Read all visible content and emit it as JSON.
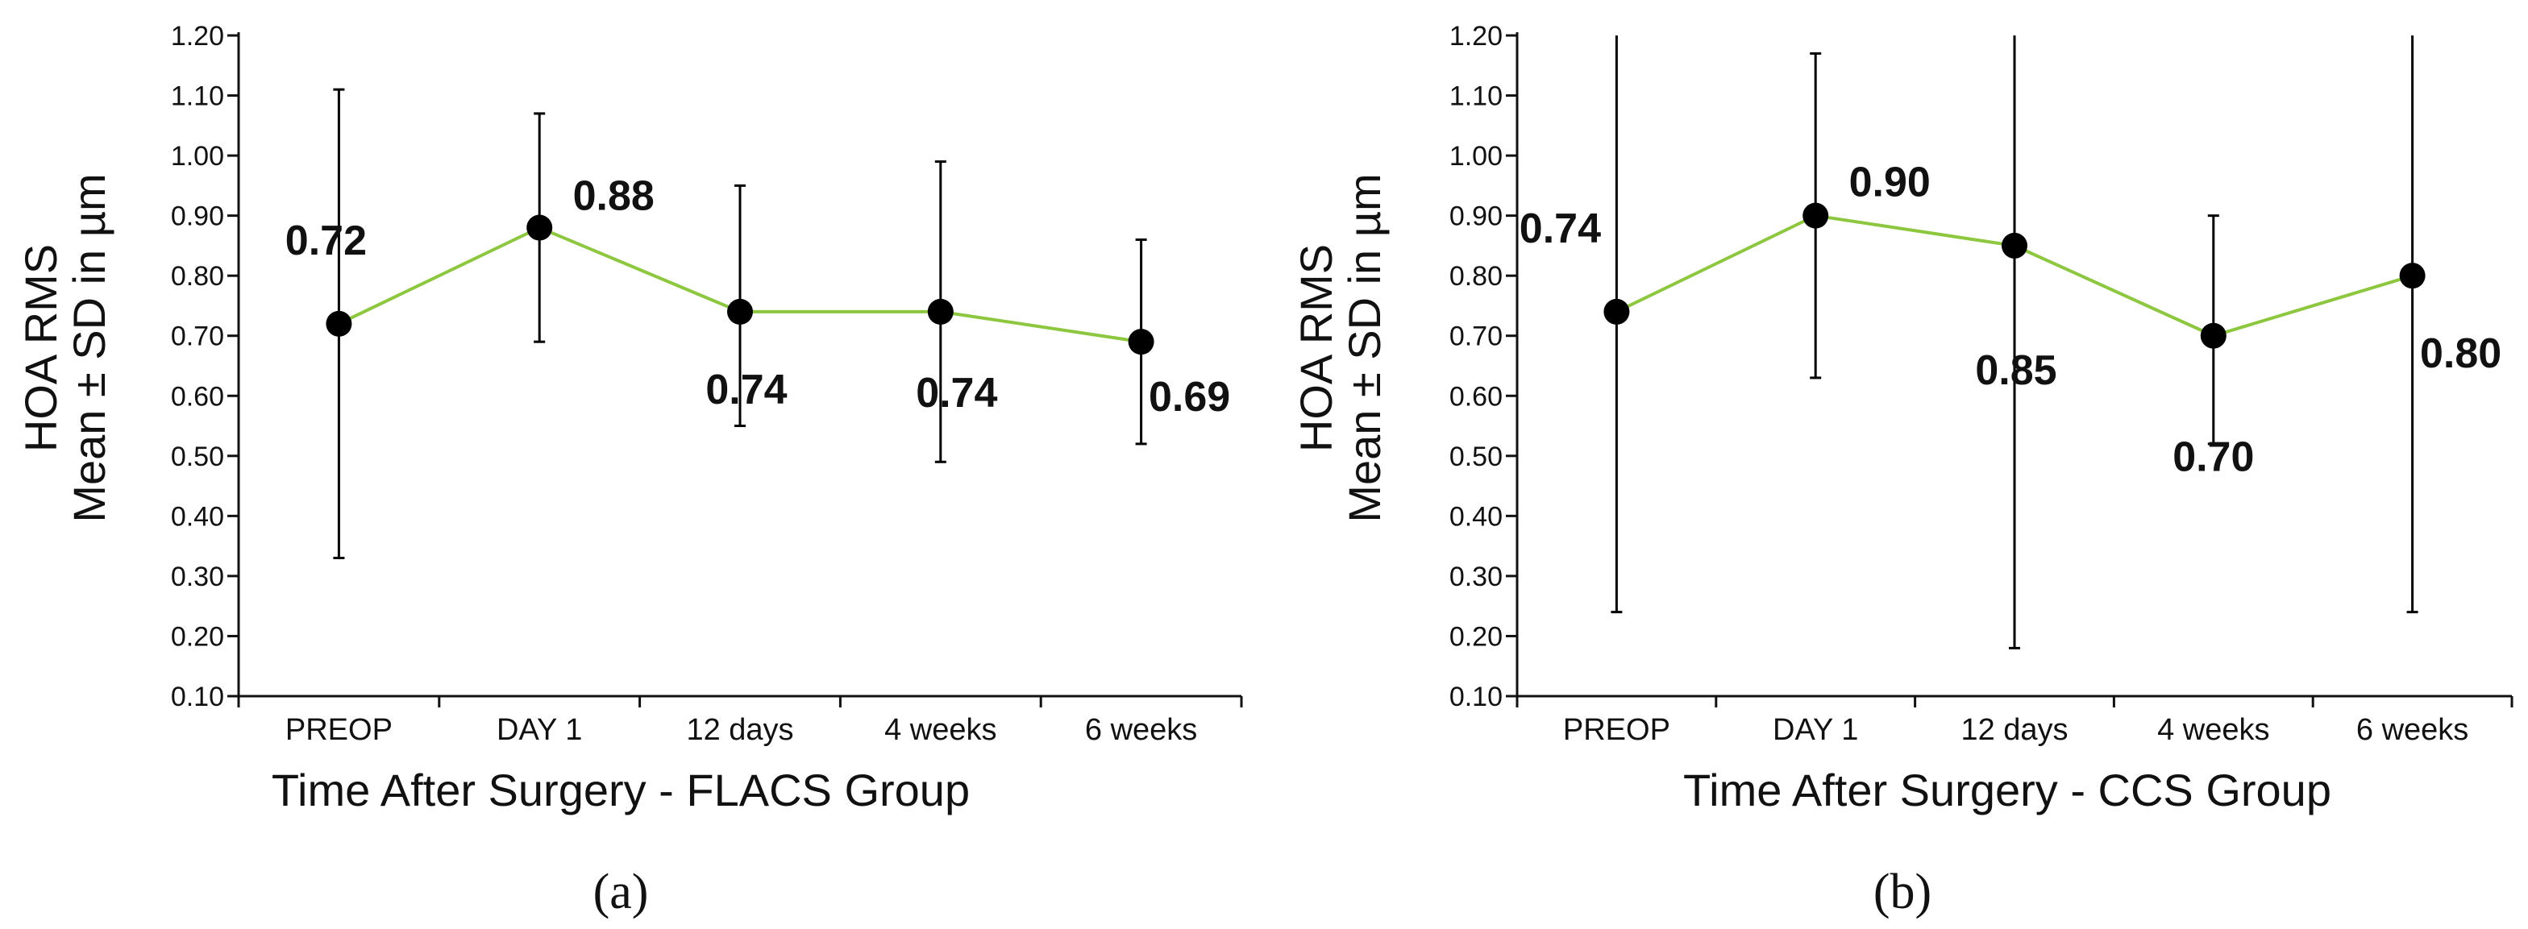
{
  "colors": {
    "line": "#8DC63F",
    "marker": "#000000",
    "axis": "#111111",
    "error_bar": "#000000"
  },
  "chart_data": [
    {
      "type": "line",
      "panel_label": "(a)",
      "title": "",
      "xlabel": "Time After Surgery - FLACS Group",
      "ylabel_line1": "HOA RMS",
      "ylabel_line2": "Mean ± SD in µm",
      "categories": [
        "PREOP",
        "DAY 1",
        "12 days",
        "4 weeks",
        "6 weeks"
      ],
      "series": [
        {
          "name": "HOA RMS",
          "values": [
            0.72,
            0.88,
            0.74,
            0.74,
            0.69
          ],
          "labels": [
            "0.72",
            "0.88",
            "0.74",
            "0.74",
            "0.69"
          ],
          "error_low": [
            0.33,
            0.69,
            0.55,
            0.49,
            0.52
          ],
          "error_high": [
            1.11,
            1.07,
            0.95,
            0.99,
            0.86
          ]
        }
      ],
      "ylim": [
        0.1,
        1.2
      ],
      "yticks": [
        "0.10",
        "0.20",
        "0.30",
        "0.40",
        "0.50",
        "0.60",
        "0.70",
        "0.80",
        "0.90",
        "1.00",
        "1.10",
        "1.20"
      ],
      "grid": false,
      "legend": "none"
    },
    {
      "type": "line",
      "panel_label": "(b)",
      "title": "",
      "xlabel": "Time After Surgery - CCS Group",
      "ylabel_line1": "HOA RMS",
      "ylabel_line2": "Mean ± SD in µm",
      "categories": [
        "PREOP",
        "DAY 1",
        "12 days",
        "4 weeks",
        "6 weeks"
      ],
      "series": [
        {
          "name": "HOA RMS",
          "values": [
            0.74,
            0.9,
            0.85,
            0.7,
            0.8
          ],
          "labels": [
            "0.74",
            "0.90",
            "0.85",
            "0.70",
            "0.80"
          ],
          "error_low": [
            0.24,
            0.63,
            0.18,
            0.52,
            0.24
          ],
          "error_high": [
            1.2,
            1.17,
            1.2,
            0.9,
            1.2
          ]
        }
      ],
      "ylim": [
        0.1,
        1.2
      ],
      "yticks": [
        "0.10",
        "0.20",
        "0.30",
        "0.40",
        "0.50",
        "0.60",
        "0.70",
        "0.80",
        "0.90",
        "1.00",
        "1.10",
        "1.20"
      ],
      "grid": false,
      "legend": "none"
    }
  ]
}
